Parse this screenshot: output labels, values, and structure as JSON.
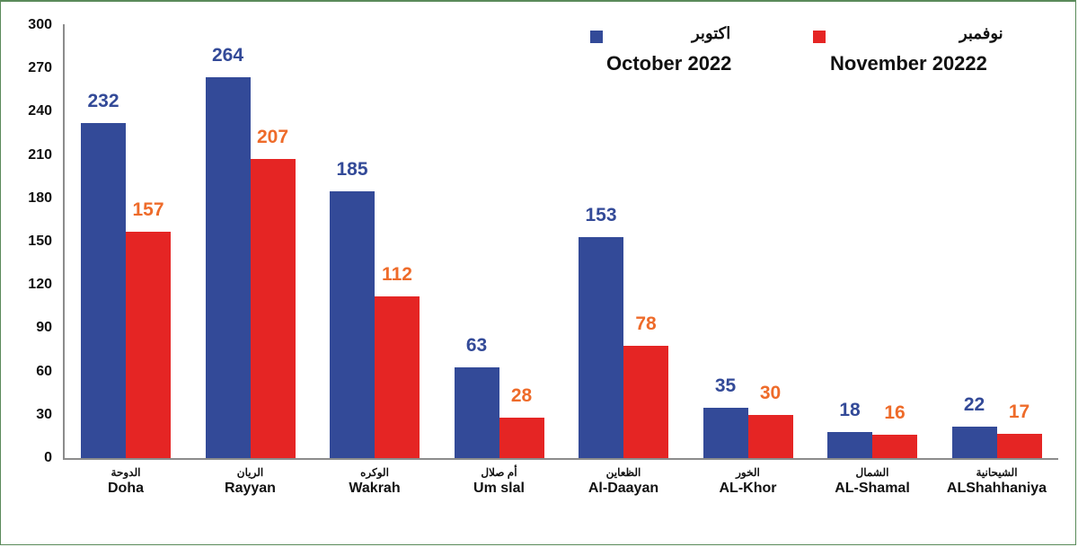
{
  "chart_data": {
    "type": "bar",
    "title": "",
    "xlabel": "",
    "ylabel": "",
    "ylim": [
      0,
      300
    ],
    "yticks": [
      0,
      30,
      60,
      90,
      120,
      150,
      180,
      210,
      240,
      270,
      300
    ],
    "grid": false,
    "legend_position": "top-right",
    "categories": [
      "Doha",
      "Rayyan",
      "Wakrah",
      "Um slal",
      "Al-Daayan",
      "AL-Khor",
      "AL-Shamal",
      "ALShahhaniya"
    ],
    "categories_ar": [
      "الدوحة",
      "الريان",
      "الوكره",
      "أم صلال",
      "الظعاين",
      "الخور",
      "الشمال",
      "الشيحانية"
    ],
    "series": [
      {
        "name": "October 2022",
        "name_ar": "اكتوبر",
        "color": "#334a98",
        "label_color": "#334a98",
        "values": [
          232,
          264,
          185,
          63,
          153,
          35,
          18,
          22
        ]
      },
      {
        "name": "November 20222",
        "name_ar": "نوفمبر",
        "color": "#e52524",
        "label_color": "#ee6b2a",
        "values": [
          157,
          207,
          112,
          28,
          78,
          30,
          16,
          17
        ]
      }
    ]
  },
  "legend": {
    "oct": {
      "ar": "اكتوبر",
      "en": "October 2022"
    },
    "nov": {
      "ar": "نوفمبر",
      "en": "November 20222"
    }
  }
}
